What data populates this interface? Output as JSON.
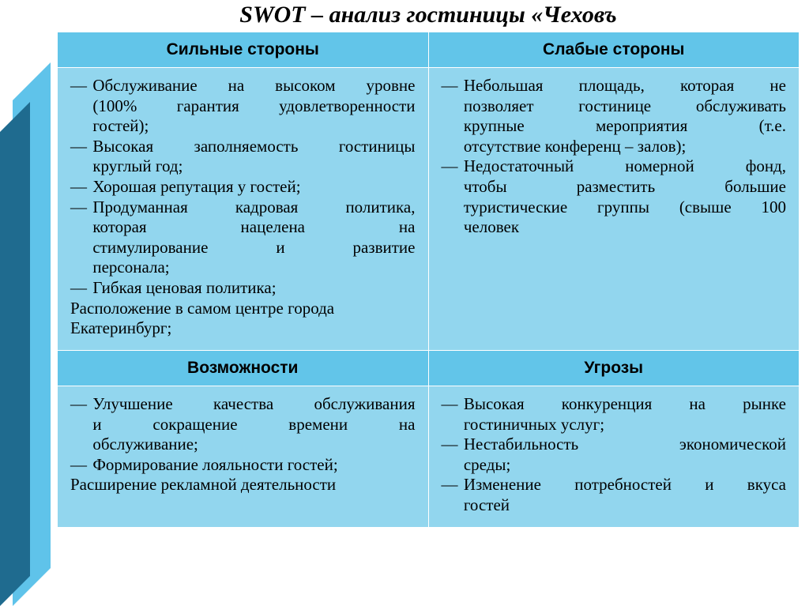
{
  "title": "SWOT – анализ гостиницы «Чеховъ",
  "headers": {
    "strengths": "Сильные стороны",
    "weaknesses": "Слабые стороны",
    "opportunities": "Возможности",
    "threats": "Угрозы"
  },
  "strengths": {
    "i1l1": "Обслуживание на высоком уровне",
    "i1l2": "(100% гарантия удовлетворенности",
    "i1l3": "гостей);",
    "i2l1": "Высокая заполняемость гостиницы",
    "i2l2": "круглый год;",
    "i3l1": "Хорошая репутация у гостей;",
    "i4l1": "Продуманная кадровая политика,",
    "i4l2": "которая нацелена на",
    "i4l3": "стимулирование и развитие",
    "i4l4": "персонала;",
    "i5l1": "Гибкая ценовая политика;",
    "t1": "Расположение в самом центре города",
    "t2": "Екатеринбург;"
  },
  "weaknesses": {
    "i1l1": "Небольшая площадь, которая не",
    "i1l2": "позволяет гостинице обслуживать",
    "i1l3": "крупные мероприятия (т.е.",
    "i1l4": "отсутствие конференц – залов);",
    "i2l1": "Недостаточный номерной фонд,",
    "i2l2": "чтобы разместить большие",
    "i2l3": "туристические группы (свыше 100",
    "i2l4": "человек"
  },
  "opportunities": {
    "i1l1": "Улучшение качества обслуживания",
    "i1l2": "и сокращение времени на",
    "i1l3": "обслуживание;",
    "i2l1": "Формирование лояльности гостей;",
    "t1": "Расширение рекламной деятельности"
  },
  "threats": {
    "i1l1": "Высокая конкуренция на рынке",
    "i1l2": "гостиничных услуг;",
    "i2l1": "Нестабильность экономической",
    "i2l2": "среды;",
    "i3l1": "Изменение потребностей и вкуса",
    "i3l2": "гостей"
  },
  "colors": {
    "header_bg": "#62c5e9",
    "cell_bg": "#92d6ee",
    "decor_dark": "#1f6b8f",
    "decor_light": "#5fc3ea",
    "border": "#ffffff"
  },
  "fonts": {
    "title_size_pt": 30,
    "header_size_pt": 21,
    "body_size_pt": 21
  }
}
